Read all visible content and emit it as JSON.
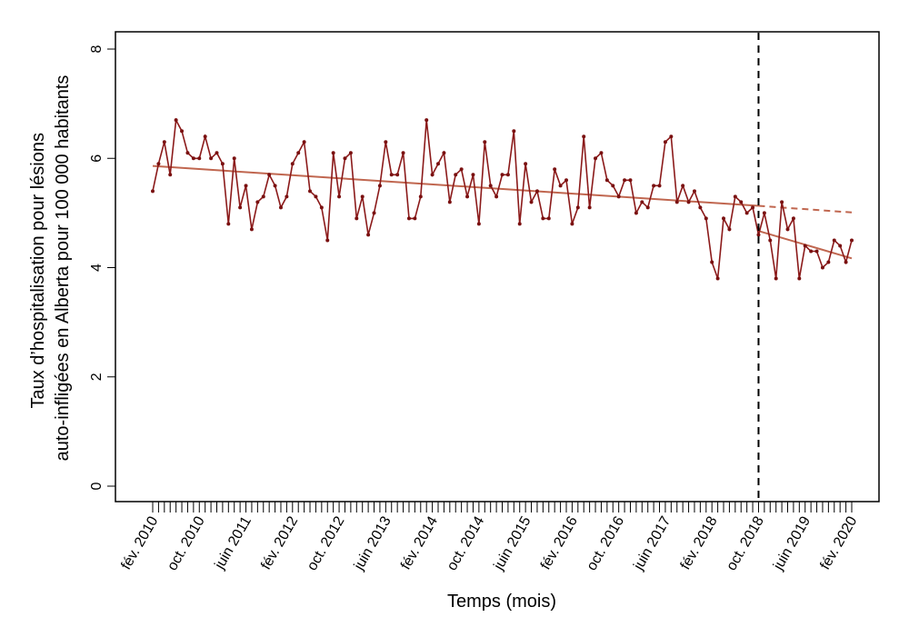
{
  "chart_data": {
    "type": "line",
    "xlabel": "Temps (mois)",
    "ylabel": [
      "Taux d’hospitalisation pour lésions",
      "auto-infligées en Alberta pour 100 000 habitants"
    ],
    "ylim": [
      0,
      8
    ],
    "yticks": [
      0,
      2,
      4,
      6,
      8
    ],
    "x_start": "févr. 2010",
    "n_points": 121,
    "xtick_labels": [
      {
        "index": 0,
        "label": "fév. 2010"
      },
      {
        "index": 8,
        "label": "oct. 2010"
      },
      {
        "index": 16,
        "label": "juin 2011"
      },
      {
        "index": 24,
        "label": "fév. 2012"
      },
      {
        "index": 32,
        "label": "oct. 2012"
      },
      {
        "index": 40,
        "label": "juin 2013"
      },
      {
        "index": 48,
        "label": "fév. 2014"
      },
      {
        "index": 56,
        "label": "oct. 2014"
      },
      {
        "index": 64,
        "label": "juin 2015"
      },
      {
        "index": 72,
        "label": "fév. 2016"
      },
      {
        "index": 80,
        "label": "oct. 2016"
      },
      {
        "index": 88,
        "label": "juin 2017"
      },
      {
        "index": 96,
        "label": "fév. 2018"
      },
      {
        "index": 104,
        "label": "oct. 2018"
      },
      {
        "index": 112,
        "label": "juin 2019"
      },
      {
        "index": 120,
        "label": "fév. 2020"
      }
    ],
    "intervention_index": 104,
    "series": [
      {
        "values": [
          5.4,
          5.9,
          6.3,
          5.7,
          6.7,
          6.5,
          6.1,
          6.0,
          6.0,
          6.4,
          6.0,
          6.1,
          5.9,
          4.8,
          6.0,
          5.1,
          5.5,
          4.7,
          5.2,
          5.3,
          5.7,
          5.5,
          5.1,
          5.3,
          5.9,
          6.1,
          6.3,
          5.4,
          5.3,
          5.1,
          4.5,
          6.1,
          5.3,
          6.0,
          6.1,
          4.9,
          5.3,
          4.6,
          5.0,
          5.5,
          6.3,
          5.7,
          5.7,
          6.1,
          4.9,
          4.9,
          5.3,
          6.7,
          5.7,
          5.9,
          6.1,
          5.2,
          5.7,
          5.8,
          5.3,
          5.7,
          4.8,
          6.3,
          5.5,
          5.3,
          5.7,
          5.7,
          6.5,
          4.8,
          5.9,
          5.2,
          5.4,
          4.9,
          4.9,
          5.8,
          5.5,
          5.6,
          4.8,
          5.1,
          6.4,
          5.1,
          6.0,
          6.1,
          5.6,
          5.5,
          5.3,
          5.6,
          5.6,
          5.0,
          5.2,
          5.1,
          5.5,
          5.5,
          6.3,
          6.4,
          5.2,
          5.5,
          5.2,
          5.4,
          5.1,
          4.9,
          4.1,
          3.8,
          4.9,
          4.7,
          5.3,
          5.2,
          5.0,
          5.1,
          4.6,
          5.0,
          4.5,
          3.8,
          5.2,
          4.7,
          4.9,
          3.8,
          4.4,
          4.3,
          4.3,
          4.0,
          4.1,
          4.5,
          4.4,
          4.1,
          4.5
        ]
      }
    ],
    "trend_pre": {
      "start": [
        0,
        5.86
      ],
      "end": [
        104,
        5.13
      ]
    },
    "trend_counterfactual": {
      "start": [
        104,
        5.13
      ],
      "end": [
        120,
        5.01
      ]
    },
    "trend_post": {
      "start": [
        104,
        4.67
      ],
      "end": [
        120,
        4.17
      ]
    },
    "colors": {
      "series": "#8b1a1a",
      "trend": "#c0664f",
      "marker": "#7a1010",
      "axis": "#000000"
    }
  }
}
